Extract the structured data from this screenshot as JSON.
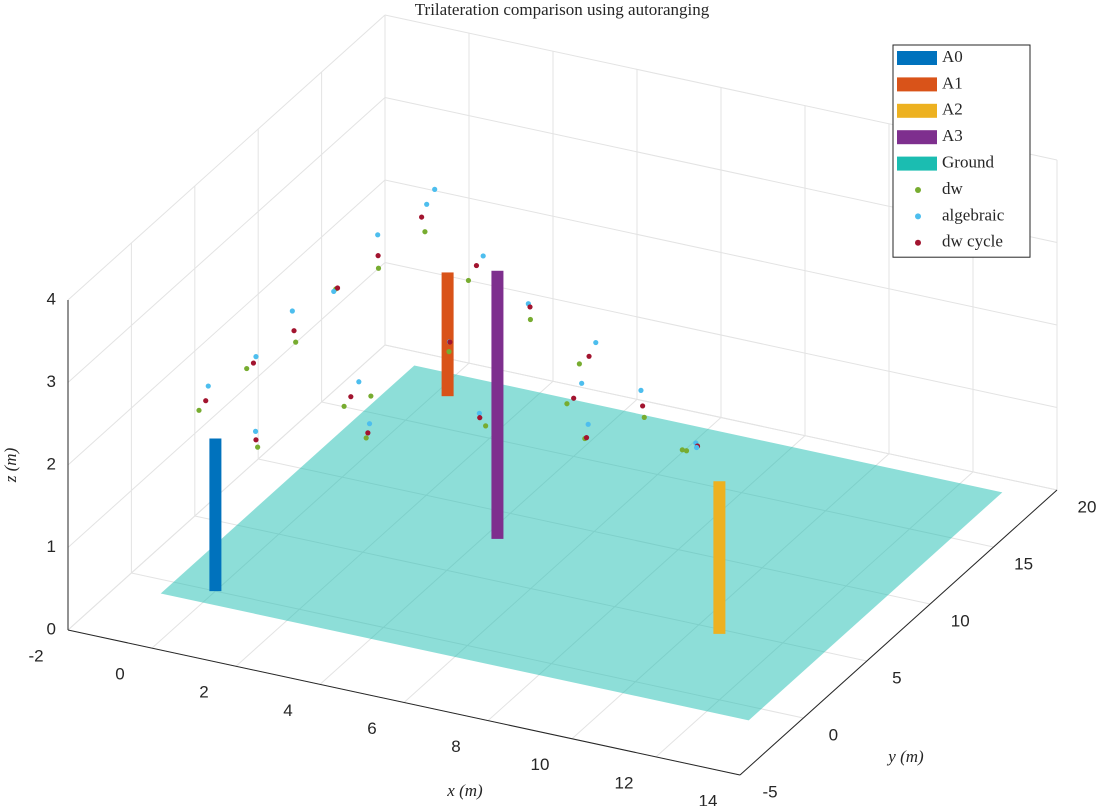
{
  "chart_data": {
    "type": "scatter3d",
    "title": "Trilateration comparison using autoranging",
    "xlabel": "x (m)",
    "ylabel": "y (m)",
    "zlabel": "z (m)",
    "xlim": [
      -2,
      14
    ],
    "ylim": [
      -5,
      20
    ],
    "zlim": [
      0,
      4
    ],
    "xticks": [
      -2,
      0,
      2,
      4,
      6,
      8,
      10,
      12,
      14
    ],
    "yticks": [
      -5,
      0,
      5,
      10,
      15,
      20
    ],
    "zticks": [
      0,
      1,
      2,
      3,
      4
    ],
    "grid": true,
    "legend": "upper right",
    "anchors": [
      {
        "name": "A0",
        "color": "#0072bd",
        "x": 0,
        "y": 0,
        "z": [
          0,
          1.85
        ]
      },
      {
        "name": "A1",
        "color": "#d95319",
        "x": 1,
        "y": 15,
        "z": [
          0.4,
          1.9
        ]
      },
      {
        "name": "A2",
        "color": "#edb120",
        "x": 12,
        "y": 0,
        "z": [
          0.8,
          2.65
        ]
      },
      {
        "name": "A3",
        "color": "#7e2f8e",
        "x": 4.3,
        "y": 8,
        "z": [
          0,
          3.25
        ]
      }
    ],
    "ground": {
      "name": "Ground",
      "color": "#1bbdb1",
      "x": [
        -1,
        13
      ],
      "y": [
        -1,
        19
      ],
      "z": 0
    },
    "series": [
      {
        "name": "dw",
        "color": "#77ac30",
        "x": [
          -0.3,
          -0.1,
          0.1,
          0.0,
          0.2,
          0.4,
          2.1,
          4.3,
          6.1,
          8.4,
          10.1,
          1.7,
          3.5,
          5.8,
          7.8,
          10.0,
          2.4,
          3.6,
          6.8,
          3.4
        ],
        "y": [
          -0.3,
          2.8,
          6.0,
          9.5,
          12.2,
          15.2,
          13.0,
          10.6,
          8.5,
          6.0,
          3.7,
          -2.3,
          0.3,
          2.1,
          3.3,
          3.7,
          2.2,
          6.5,
          5.2,
          1.0
        ],
        "z": [
          2.2,
          2.3,
          2.2,
          2.35,
          2.25,
          2.3,
          2.2,
          2.3,
          2.25,
          2.2,
          2.3,
          2.25,
          2.2,
          2.35,
          2.25,
          2.3,
          2.2,
          2.4,
          2.3,
          2.6
        ]
      },
      {
        "name": "algebraic",
        "color": "#4dbeee",
        "x": [
          -0.2,
          0.0,
          -0.1,
          0.1,
          0.0,
          0.2,
          2.3,
          4.1,
          6.4,
          8.2,
          10.4,
          1.5,
          3.7,
          5.5,
          8.0,
          10.2,
          2.6,
          3.4,
          7.0,
          0.3
        ],
        "y": [
          0.1,
          3.2,
          6.4,
          9.0,
          12.8,
          16.0,
          13.5,
          11.1,
          8.8,
          6.4,
          3.5,
          -1.8,
          -0.1,
          2.6,
          2.9,
          4.1,
          2.7,
          7.2,
          5.7,
          16.3
        ],
        "z": [
          2.45,
          2.4,
          2.5,
          2.4,
          2.55,
          2.5,
          2.45,
          2.4,
          2.5,
          2.45,
          2.4,
          2.35,
          2.45,
          2.4,
          2.5,
          2.35,
          2.45,
          2.4,
          2.5,
          2.65
        ]
      },
      {
        "name": "dw cycle",
        "color": "#a2142f",
        "x": [
          -0.2,
          0.0,
          0.0,
          0.1,
          0.1,
          0.2,
          2.2,
          4.2,
          6.3,
          8.3,
          10.3,
          1.6,
          3.6,
          5.6,
          7.9,
          10.3,
          2.5,
          3.5,
          6.9
        ],
        "y": [
          -0.1,
          3.0,
          6.2,
          9.3,
          12.5,
          15.6,
          13.3,
          10.9,
          8.6,
          6.2,
          3.9,
          -2.1,
          0.1,
          2.3,
          3.1,
          3.9,
          2.4,
          6.9,
          5.4
        ],
        "z": [
          2.3,
          2.35,
          2.3,
          2.4,
          2.35,
          2.4,
          2.35,
          2.4,
          2.35,
          2.3,
          2.35,
          2.3,
          2.3,
          2.4,
          2.3,
          2.35,
          2.3,
          2.45,
          2.35
        ]
      }
    ]
  }
}
